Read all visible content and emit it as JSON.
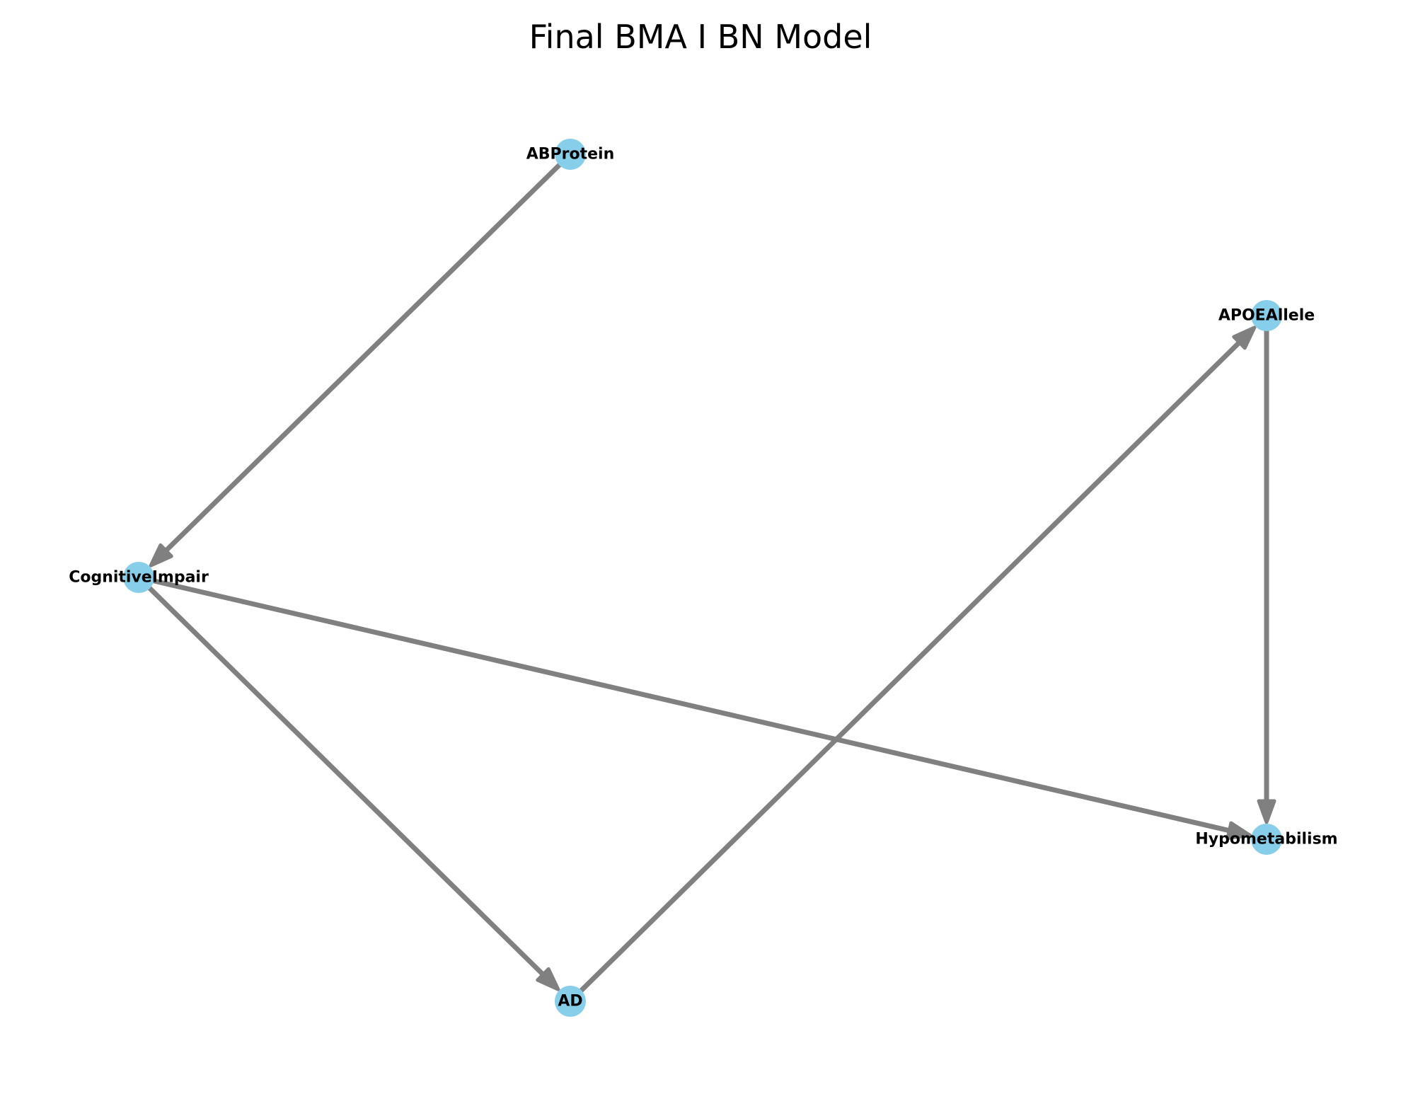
{
  "title": "Final BMA I BN Model",
  "colors": {
    "node_fill": "#87CEEB",
    "edge_stroke": "#808080",
    "label": "#000000",
    "background": "#FFFFFF"
  },
  "nodes": [
    {
      "id": "ABProtein",
      "label": "ABProtein"
    },
    {
      "id": "APOEAllele",
      "label": "APOEAllele"
    },
    {
      "id": "CognitiveImpair",
      "label": "CognitiveImpair"
    },
    {
      "id": "Hypometabilism",
      "label": "Hypometabilism"
    },
    {
      "id": "AD",
      "label": "AD"
    }
  ],
  "edges": [
    {
      "from": "ABProtein",
      "to": "CognitiveImpair"
    },
    {
      "from": "CognitiveImpair",
      "to": "AD"
    },
    {
      "from": "CognitiveImpair",
      "to": "Hypometabilism"
    },
    {
      "from": "AD",
      "to": "APOEAllele"
    },
    {
      "from": "APOEAllele",
      "to": "Hypometabilism"
    }
  ]
}
